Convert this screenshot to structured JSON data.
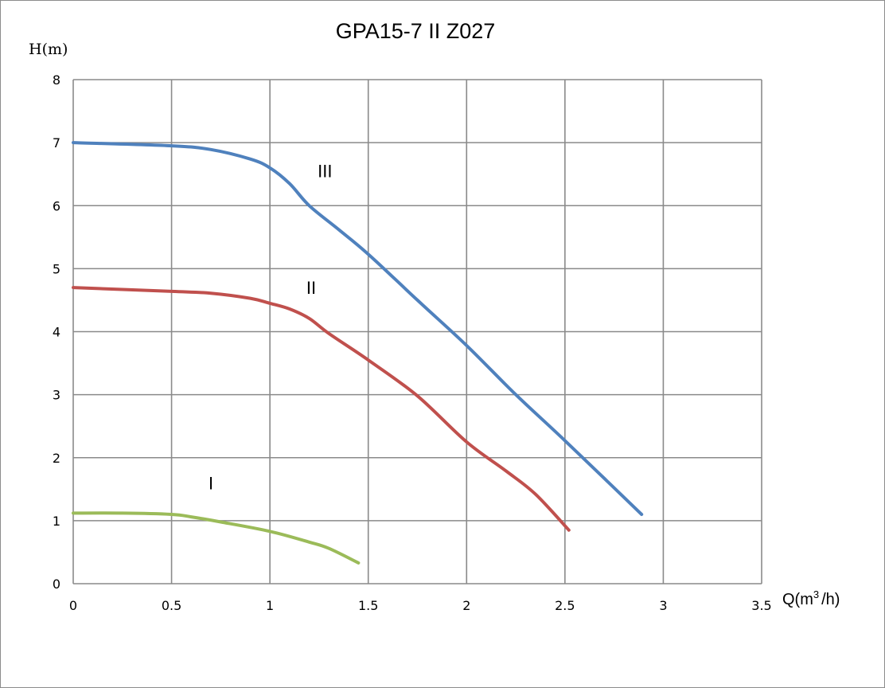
{
  "chart_data": {
    "type": "line",
    "title": "GPA15-7 II Z027",
    "ylabel": "H(m)",
    "xlabel": "Q(m³/h)",
    "xlabel_parts": {
      "prefix": "Q(m",
      "sup": "3",
      "suffix": "/h)"
    },
    "xlim": [
      0,
      3.5
    ],
    "ylim": [
      0,
      8
    ],
    "x_ticks": [
      "0",
      "0.5",
      "1",
      "1.5",
      "2",
      "2.5",
      "3",
      "3.5"
    ],
    "y_ticks": [
      "0",
      "1",
      "2",
      "3",
      "4",
      "5",
      "6",
      "7",
      "8"
    ],
    "grid": true,
    "series": [
      {
        "name": "I",
        "color": "#9bbb59",
        "points": [
          [
            0,
            1.12
          ],
          [
            0.25,
            1.12
          ],
          [
            0.5,
            1.1
          ],
          [
            0.6,
            1.06
          ],
          [
            0.75,
            0.98
          ],
          [
            1.0,
            0.83
          ],
          [
            1.2,
            0.66
          ],
          [
            1.3,
            0.56
          ],
          [
            1.45,
            0.33
          ]
        ]
      },
      {
        "name": "II",
        "color": "#c0504d",
        "points": [
          [
            0,
            4.7
          ],
          [
            0.5,
            4.64
          ],
          [
            0.7,
            4.61
          ],
          [
            0.9,
            4.53
          ],
          [
            1.0,
            4.45
          ],
          [
            1.1,
            4.36
          ],
          [
            1.2,
            4.21
          ],
          [
            1.3,
            3.97
          ],
          [
            1.5,
            3.55
          ],
          [
            1.75,
            2.98
          ],
          [
            2.0,
            2.25
          ],
          [
            2.2,
            1.79
          ],
          [
            2.35,
            1.42
          ],
          [
            2.52,
            0.85
          ]
        ]
      },
      {
        "name": "III",
        "color": "#4f81bd",
        "points": [
          [
            0,
            7.0
          ],
          [
            0.5,
            6.95
          ],
          [
            0.7,
            6.89
          ],
          [
            0.9,
            6.74
          ],
          [
            1.0,
            6.6
          ],
          [
            1.1,
            6.35
          ],
          [
            1.2,
            6.0
          ],
          [
            1.35,
            5.62
          ],
          [
            1.5,
            5.23
          ],
          [
            1.75,
            4.5
          ],
          [
            2.0,
            3.78
          ],
          [
            2.25,
            3.0
          ],
          [
            2.5,
            2.27
          ],
          [
            2.89,
            1.1
          ]
        ]
      }
    ],
    "annotations": [
      {
        "text": "I",
        "x": 0.7,
        "y": 1.5
      },
      {
        "text": "II",
        "x": 1.21,
        "y": 4.6
      },
      {
        "text": "III",
        "x": 1.28,
        "y": 6.45
      }
    ]
  }
}
